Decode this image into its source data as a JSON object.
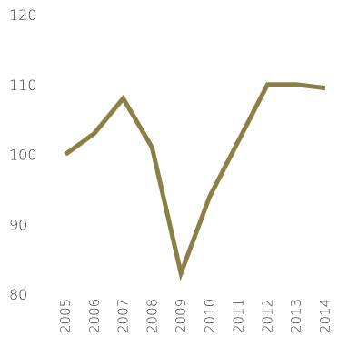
{
  "chart_data": {
    "type": "line",
    "title": "",
    "xlabel": "",
    "ylabel": "",
    "x": [
      "2005",
      "2006",
      "2007",
      "2008",
      "2009",
      "2010",
      "2011",
      "2012",
      "2013",
      "2014"
    ],
    "series": [
      {
        "values": [
          100,
          103,
          108,
          101,
          83,
          94,
          102,
          110,
          110,
          109.5
        ]
      }
    ],
    "ylim": [
      80,
      120
    ],
    "yticks": [
      "80",
      "90",
      "100",
      "110",
      "120"
    ],
    "grid": false,
    "legend": "none",
    "line_color": "#8b8046"
  }
}
